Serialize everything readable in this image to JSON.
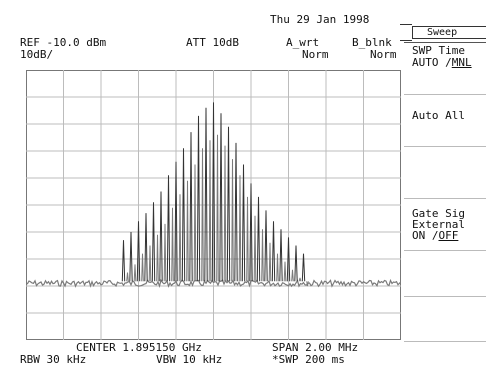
{
  "header": {
    "date": "Thu 29 Jan 1998",
    "ref_level": "REF -10.0 dBm",
    "scale": "10dB/",
    "attenuation": "ATT 10dB",
    "trace_a": "A_wrt",
    "trace_a_mode": "Norm",
    "trace_b": "B_blnk",
    "trace_b_mode": "Norm"
  },
  "footer": {
    "center": "CENTER 1.895150 GHz",
    "span": "SPAN 2.00 MHz",
    "rbw": "RBW 30 kHz",
    "vbw": "VBW 10 kHz",
    "swp": "*SWP 200 ms"
  },
  "menu": {
    "title": "Sweep",
    "swp_time": {
      "label": "SWP Time",
      "auto": "AUTO /",
      "mnl": "MNL"
    },
    "auto_all": "Auto All",
    "gate_signal": {
      "line1": "Gate Sig",
      "line2": "External",
      "on": "ON /",
      "off": "OFF"
    }
  },
  "colors": {
    "trace": "#7a7a7a",
    "grid": "#bcbcbc",
    "text": "#111111"
  },
  "chart_data": {
    "type": "line",
    "center_ghz": 1.89515,
    "span_mhz": 2.0,
    "ref_dbm": -10.0,
    "db_per_div": 10,
    "x_divisions": 10,
    "y_divisions": 10,
    "noise_floor_dbm": -89,
    "carriers": [
      {
        "offset_mhz": -0.48,
        "level_dbm": -73
      },
      {
        "offset_mhz": -0.44,
        "level_dbm": -70
      },
      {
        "offset_mhz": -0.4,
        "level_dbm": -66
      },
      {
        "offset_mhz": -0.36,
        "level_dbm": -63
      },
      {
        "offset_mhz": -0.32,
        "level_dbm": -59
      },
      {
        "offset_mhz": -0.28,
        "level_dbm": -55
      },
      {
        "offset_mhz": -0.24,
        "level_dbm": -49
      },
      {
        "offset_mhz": -0.2,
        "level_dbm": -44
      },
      {
        "offset_mhz": -0.16,
        "level_dbm": -39
      },
      {
        "offset_mhz": -0.12,
        "level_dbm": -33
      },
      {
        "offset_mhz": -0.08,
        "level_dbm": -27
      },
      {
        "offset_mhz": -0.04,
        "level_dbm": -24
      },
      {
        "offset_mhz": 0.0,
        "level_dbm": -22
      },
      {
        "offset_mhz": 0.04,
        "level_dbm": -26
      },
      {
        "offset_mhz": 0.08,
        "level_dbm": -31
      },
      {
        "offset_mhz": 0.12,
        "level_dbm": -37
      },
      {
        "offset_mhz": 0.16,
        "level_dbm": -45
      },
      {
        "offset_mhz": 0.2,
        "level_dbm": -52
      },
      {
        "offset_mhz": 0.24,
        "level_dbm": -57
      },
      {
        "offset_mhz": 0.28,
        "level_dbm": -62
      },
      {
        "offset_mhz": 0.32,
        "level_dbm": -66
      },
      {
        "offset_mhz": 0.36,
        "level_dbm": -69
      },
      {
        "offset_mhz": 0.4,
        "level_dbm": -72
      },
      {
        "offset_mhz": 0.44,
        "level_dbm": -75
      },
      {
        "offset_mhz": 0.48,
        "level_dbm": -78
      }
    ]
  }
}
